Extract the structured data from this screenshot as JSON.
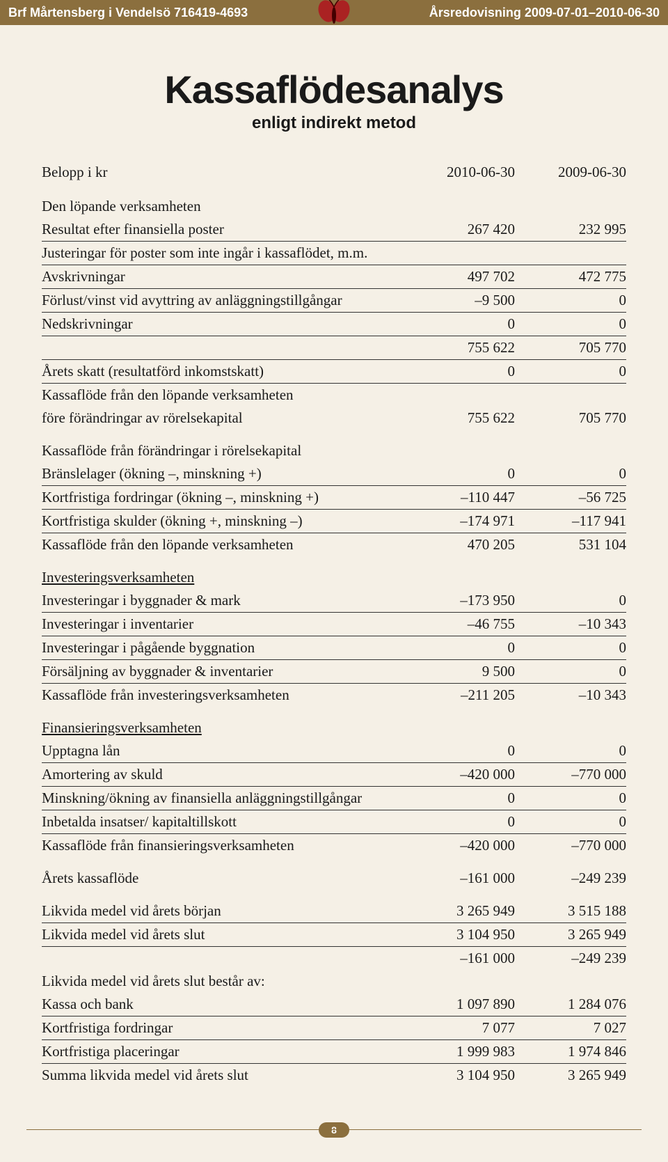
{
  "header": {
    "left": "Brf Mårtensberg i Vendelsö  716419-4693",
    "right": "Årsredovisning 2009-07-01–2010-06-30",
    "bg_color": "#8b6f3e",
    "page_bg": "#f5f0e6"
  },
  "title": {
    "main": "Kassaflödesanalys",
    "sub": "enligt indirekt metod"
  },
  "table": {
    "header": {
      "label": "Belopp i kr",
      "col1": "2010-06-30",
      "col2": "2009-06-30"
    },
    "rows": [
      {
        "kind": "section",
        "label": "Den löpande verksamheten"
      },
      {
        "kind": "line",
        "label": "Resultat efter finansiella poster",
        "c1": "267 420",
        "c2": "232 995",
        "hr": true
      },
      {
        "kind": "line",
        "label": "Justeringar för poster som inte ingår i kassaflödet, m.m.",
        "c1": "",
        "c2": "",
        "hr": true
      },
      {
        "kind": "line",
        "label": "Avskrivningar",
        "c1": "497 702",
        "c2": "472 775",
        "hr": true
      },
      {
        "kind": "line",
        "label": "Förlust/vinst vid avyttring av anläggningstillgångar",
        "c1": "–9 500",
        "c2": "0",
        "hr": true
      },
      {
        "kind": "line",
        "label": "Nedskrivningar",
        "c1": "0",
        "c2": "0",
        "hr": true
      },
      {
        "kind": "line",
        "label": "",
        "c1": "755 622",
        "c2": "705 770",
        "hr": true
      },
      {
        "kind": "line",
        "label": "Årets skatt (resultatförd inkomstskatt)",
        "c1": "0",
        "c2": "0",
        "hr": true
      },
      {
        "kind": "line",
        "label": "Kassaflöde från den löpande verksamheten",
        "c1": "",
        "c2": ""
      },
      {
        "kind": "line",
        "label": "före förändringar av rörelsekapital",
        "c1": "755 622",
        "c2": "705 770"
      },
      {
        "kind": "section",
        "label": "Kassaflöde från förändringar i rörelsekapital"
      },
      {
        "kind": "line",
        "label": "Bränslelager (ökning –, minskning +)",
        "c1": "0",
        "c2": "0",
        "hr": true
      },
      {
        "kind": "line",
        "label": "Kortfristiga fordringar (ökning –, minskning +)",
        "c1": "–110 447",
        "c2": "–56 725",
        "hr": true
      },
      {
        "kind": "line",
        "label": "Kortfristiga skulder (ökning +, minskning –)",
        "c1": "–174 971",
        "c2": "–117 941",
        "hr": true
      },
      {
        "kind": "line",
        "label": "Kassaflöde från den löpande verksamheten",
        "c1": "470 205",
        "c2": "531 104"
      },
      {
        "kind": "section",
        "label": "Investeringsverksamheten",
        "underline": true
      },
      {
        "kind": "line",
        "label": "Investeringar i byggnader & mark",
        "c1": "–173 950",
        "c2": "0",
        "hr": true
      },
      {
        "kind": "line",
        "label": "Investeringar i inventarier",
        "c1": "–46 755",
        "c2": "–10 343",
        "hr": true
      },
      {
        "kind": "line",
        "label": "Investeringar i pågående byggnation",
        "c1": "0",
        "c2": "0",
        "hr": true
      },
      {
        "kind": "line",
        "label": "Försäljning av byggnader & inventarier",
        "c1": "9 500",
        "c2": "0",
        "hr": true
      },
      {
        "kind": "line",
        "label": "Kassaflöde från investeringsverksamheten",
        "c1": "–211 205",
        "c2": "–10 343"
      },
      {
        "kind": "section",
        "label": "Finansieringsverksamheten",
        "underline": true
      },
      {
        "kind": "line",
        "label": "Upptagna lån",
        "c1": "0",
        "c2": "0",
        "hr": true
      },
      {
        "kind": "line",
        "label": "Amortering av skuld",
        "c1": "–420 000",
        "c2": "–770 000",
        "hr": true
      },
      {
        "kind": "line",
        "label": "Minskning/ökning av finansiella anläggningstillgångar",
        "c1": "0",
        "c2": "0",
        "hr": true
      },
      {
        "kind": "line",
        "label": "Inbetalda insatser/ kapitaltillskott",
        "c1": "0",
        "c2": "0",
        "hr": true
      },
      {
        "kind": "line",
        "label": "Kassaflöde från finansieringsverksamheten",
        "c1": "–420 000",
        "c2": "–770 000"
      },
      {
        "kind": "section",
        "label": "Årets kassaflöde",
        "c1": "–161 000",
        "c2": "–249 239",
        "with_values": true
      },
      {
        "kind": "section-line",
        "label": "Likvida medel vid årets början",
        "c1": "3 265 949",
        "c2": "3 515 188",
        "hr": true
      },
      {
        "kind": "line",
        "label": "Likvida medel vid årets slut",
        "c1": "3 104 950",
        "c2": "3 265 949",
        "hr": true
      },
      {
        "kind": "line",
        "label": "",
        "c1": "–161 000",
        "c2": "–249 239"
      },
      {
        "kind": "line",
        "label": "Likvida medel vid årets slut består av:",
        "c1": "",
        "c2": ""
      },
      {
        "kind": "line",
        "label": "Kassa och bank",
        "c1": "1 097 890",
        "c2": "1 284 076",
        "hr": true
      },
      {
        "kind": "line",
        "label": "Kortfristiga fordringar",
        "c1": "7 077",
        "c2": "7 027",
        "hr": true
      },
      {
        "kind": "line",
        "label": "Kortfristiga placeringar",
        "c1": "1 999 983",
        "c2": "1 974 846",
        "hr": true
      },
      {
        "kind": "line",
        "label": "Summa likvida medel vid årets slut",
        "c1": "3 104 950",
        "c2": "3 265 949"
      }
    ]
  },
  "page_number": "8"
}
